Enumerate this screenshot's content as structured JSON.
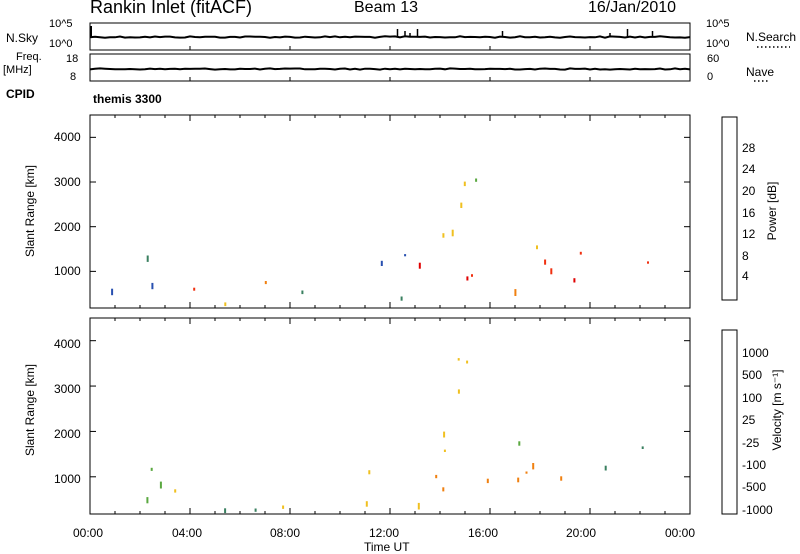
{
  "header": {
    "title": "Rankin Inlet (fitACF)",
    "beam": "Beam 13",
    "date": "16/Jan/2010"
  },
  "nsky": {
    "label": "N.Sky",
    "tick_top": "10^5",
    "tick_bottom": "10^0",
    "right_label": "N.Search",
    "right_tick_top": "10^5",
    "right_tick_bottom": "10^0"
  },
  "freq": {
    "label_1": "Freq.",
    "label_2": "[MHz]",
    "tick_top": "18",
    "tick_bottom": "8",
    "right_label": "Nave",
    "right_tick_top": "60",
    "right_tick_bottom": "0"
  },
  "cpid": {
    "label": "CPID",
    "value": "themis 3300"
  },
  "power_panel": {
    "ylabel": "Slant Range [km]",
    "yticks": [
      "1000",
      "2000",
      "3000",
      "4000"
    ],
    "colorbar_label": "Power [dB]",
    "colorbar_ticks": [
      "4",
      "8",
      "12",
      "16",
      "20",
      "24",
      "28"
    ],
    "colors": [
      "#1030e0",
      "#2850b0",
      "#3a8060",
      "#5aa840",
      "#f0c020",
      "#f08010",
      "#f03010",
      "#e00000"
    ]
  },
  "velocity_panel": {
    "ylabel": "Slant Range [km]",
    "yticks": [
      "1000",
      "2000",
      "3000",
      "4000"
    ],
    "colorbar_label": "Velocity [m s⁻¹]",
    "colorbar_ticks": [
      "1000",
      "500",
      "100",
      "25",
      "-25",
      "-100",
      "-500",
      "-1000"
    ],
    "colors": [
      "#1030e0",
      "#2850b0",
      "#3a8060",
      "#5aa840",
      "#c8c8c8",
      "#f0c020",
      "#f08010",
      "#f03010",
      "#e00000"
    ]
  },
  "x_axis": {
    "ticks": [
      "00:00",
      "04:00",
      "08:00",
      "12:00",
      "16:00",
      "20:00",
      "00:00"
    ],
    "label": "Time UT"
  },
  "chart_data": {
    "type": "heatmap",
    "title": "Rankin Inlet (fitACF)",
    "xlabel": "Time UT",
    "ylabel": "Slant Range [km]",
    "x_range_hours": [
      0,
      24
    ],
    "ylim_km": [
      180,
      4500
    ],
    "power_scale_db": [
      0,
      32
    ],
    "velocity_scale": [
      "-1000",
      "1000"
    ],
    "scatter_regions": [
      {
        "t0": 0.3,
        "t1": 3.0,
        "r0": 500,
        "r1": 1400,
        "power": 8,
        "velocity": 25
      },
      {
        "t0": 2.5,
        "t1": 4.6,
        "r0": 250,
        "r1": 800,
        "power": 24,
        "velocity": -100
      },
      {
        "t0": 5.0,
        "t1": 7.4,
        "r0": 250,
        "r1": 900,
        "power": 20,
        "velocity": 100
      },
      {
        "t0": 7.5,
        "t1": 9.5,
        "r0": 250,
        "r1": 900,
        "power": 12,
        "velocity": -100
      },
      {
        "t0": 9.5,
        "t1": 10.5,
        "r0": 250,
        "r1": 600,
        "power": 28,
        "velocity": -500
      },
      {
        "t0": 11.0,
        "t1": 13.5,
        "r0": 300,
        "r1": 1500,
        "power": 8,
        "velocity": -100
      },
      {
        "t0": 13.0,
        "t1": 16.5,
        "r0": 500,
        "r1": 1200,
        "power": 28,
        "velocity": -500
      },
      {
        "t0": 14.0,
        "t1": 16.0,
        "r0": 1500,
        "r1": 3700,
        "power": 16,
        "velocity": -100
      },
      {
        "t0": 16.0,
        "t1": 19.0,
        "r0": 600,
        "r1": 1400,
        "power": 24,
        "velocity": -500
      },
      {
        "t0": 16.5,
        "t1": 18.5,
        "r0": 1500,
        "r1": 2100,
        "power": 16,
        "velocity": 25
      },
      {
        "t0": 18.0,
        "t1": 20.0,
        "r0": 600,
        "r1": 1100,
        "power": 30,
        "velocity": -500
      },
      {
        "t0": 19.5,
        "t1": 22.3,
        "r0": 900,
        "r1": 1700,
        "power": 28,
        "velocity": 100
      },
      {
        "t0": 22.0,
        "t1": 22.8,
        "r0": 800,
        "r1": 1300,
        "power": 8,
        "velocity": 25
      }
    ]
  }
}
